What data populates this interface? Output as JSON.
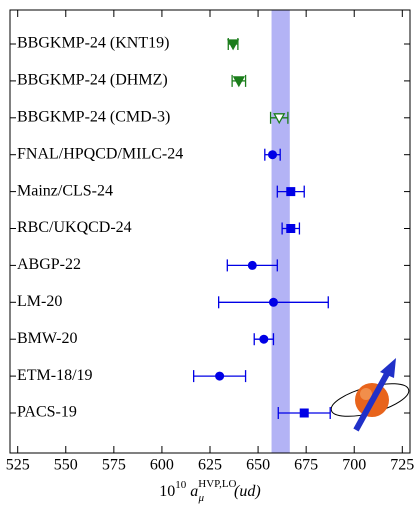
{
  "chart_data": {
    "type": "forest",
    "categories": [
      "BBGKMP-24 (KNT19)",
      "BBGKMP-24 (DHMZ)",
      "BBGKMP-24 (CMD-3)",
      "FNAL/HPQCD/MILC-24",
      "Mainz/CLS-24",
      "RBC/UKQCD-24",
      "ABGP-22",
      "LM-20",
      "BMW-20",
      "ETM-18/19",
      "PACS-19"
    ],
    "values": [
      637,
      640,
      661,
      657.5,
      667,
      667,
      647,
      658,
      653,
      630,
      674
    ],
    "errors": [
      2.5,
      3.5,
      4.5,
      4,
      7,
      4.5,
      13,
      28.5,
      5,
      13.5,
      13.5
    ],
    "markers": [
      "triangle-down",
      "triangle-down",
      "triangle-down-open",
      "circle",
      "square",
      "square",
      "circle",
      "circle",
      "circle",
      "circle",
      "square"
    ],
    "colors": [
      "#1b7d1b",
      "#1b7d1b",
      "#1b7d1b",
      "#0000e6",
      "#0000e6",
      "#0000e6",
      "#0000e6",
      "#0000e6",
      "#0000e6",
      "#0000e6",
      "#0000e6"
    ],
    "band": [
      657,
      666.5
    ],
    "band_color": "#b3b3f5",
    "xlim": [
      521,
      729
    ],
    "xticks": [
      525,
      550,
      575,
      600,
      625,
      650,
      675,
      700,
      725
    ],
    "xlabel": {
      "base": "10",
      "exp": "10",
      "symbol": "a",
      "sub": "μ",
      "sup": "HVP,LO",
      "arg": "(ud)"
    }
  }
}
